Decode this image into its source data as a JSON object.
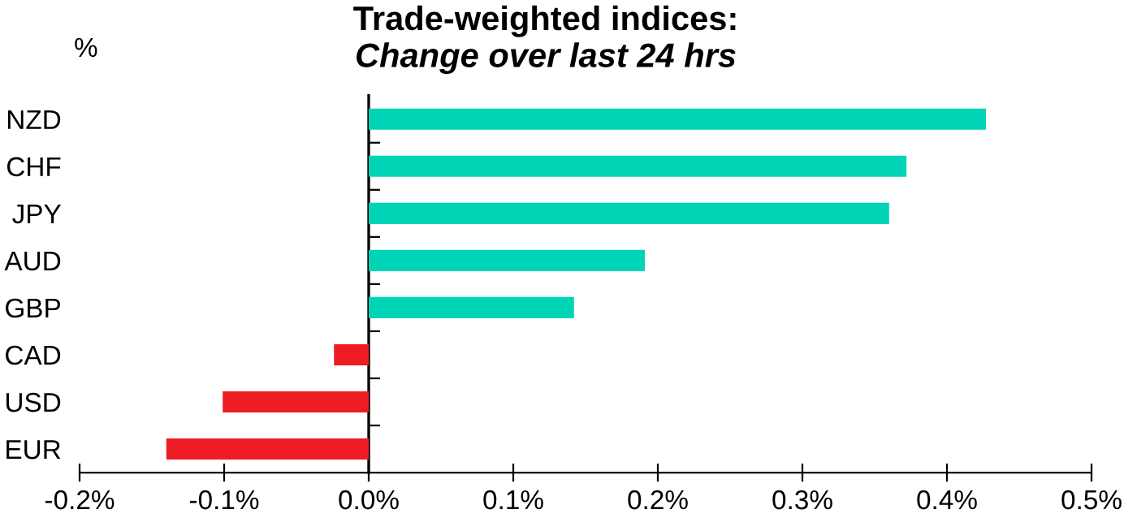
{
  "chart_data": {
    "type": "bar",
    "orientation": "horizontal",
    "title": "Trade-weighted indices:",
    "subtitle": "Change over last 24 hrs",
    "ylabel": "%",
    "categories": [
      "NZD",
      "CHF",
      "JPY",
      "AUD",
      "GBP",
      "CAD",
      "USD",
      "EUR"
    ],
    "values": [
      0.427,
      0.372,
      0.36,
      0.191,
      0.142,
      -0.024,
      -0.101,
      -0.14
    ],
    "colors": [
      "#00d4b7",
      "#00d4b7",
      "#00d4b7",
      "#00d4b7",
      "#00d4b7",
      "#ed1c24",
      "#ed1c24",
      "#ed1c24"
    ],
    "xlim": [
      -0.2,
      0.5
    ],
    "xticks": [
      {
        "value": -0.2,
        "label": "-0.2%"
      },
      {
        "value": -0.1,
        "label": "-0.1%"
      },
      {
        "value": 0,
        "label": "0.0%"
      },
      {
        "value": 0.1,
        "label": "0.1%"
      },
      {
        "value": 0.2,
        "label": "0.2%"
      },
      {
        "value": 0.3,
        "label": "0.3%"
      },
      {
        "value": 0.4,
        "label": "0.4%"
      },
      {
        "value": 0.5,
        "label": "0.5%"
      }
    ],
    "legend": false
  }
}
